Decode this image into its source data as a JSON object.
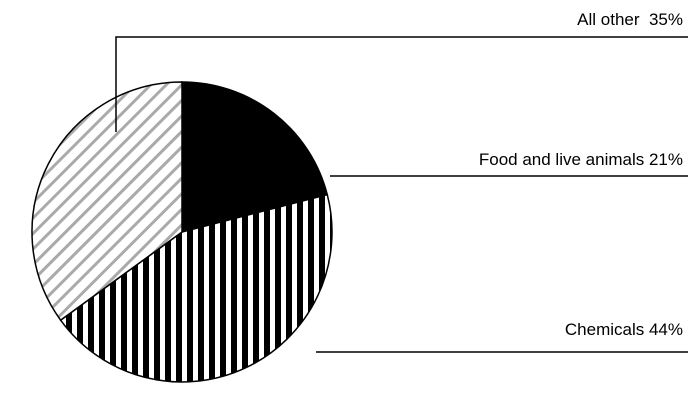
{
  "chart_data": {
    "type": "pie",
    "slices": [
      {
        "label": "Food and live animals",
        "value": 21,
        "display": "Food and live animals 21%",
        "fill": "solid-black"
      },
      {
        "label": "Chemicals",
        "value": 44,
        "display": "Chemicals 44%",
        "fill": "vertical-stripes"
      },
      {
        "label": "All other",
        "value": 35,
        "display": "All other  35%",
        "fill": "gray-diagonal-hatch"
      }
    ],
    "start_angle": "12 o'clock",
    "direction": "clockwise"
  },
  "colors": {
    "ink": "#000000",
    "hatch": "#aaaaaa",
    "background": "#ffffff"
  }
}
